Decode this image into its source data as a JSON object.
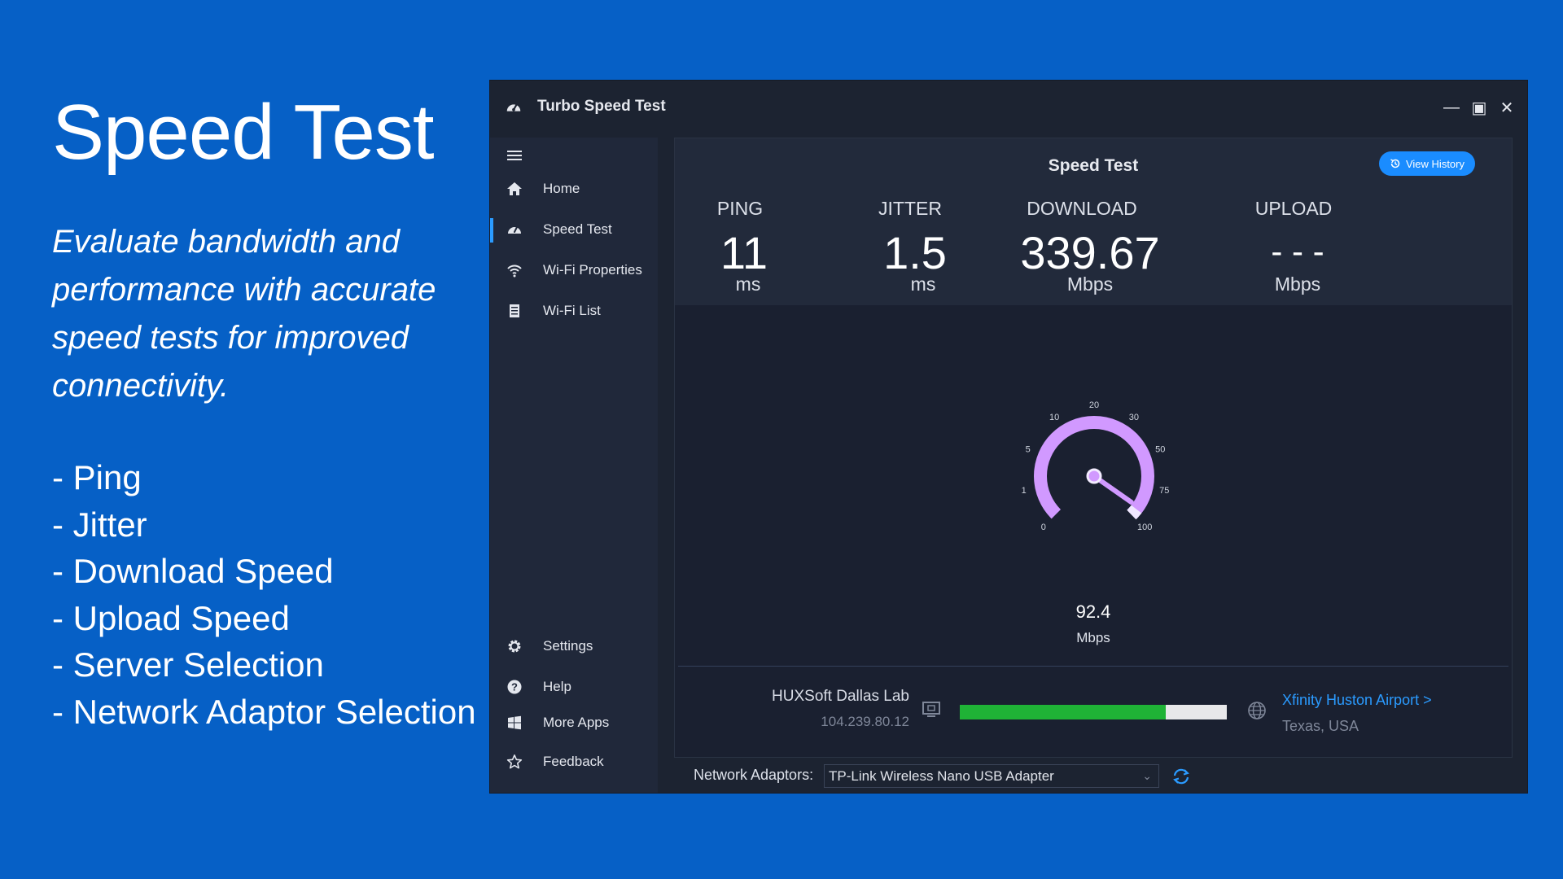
{
  "promo": {
    "title": "Speed Test",
    "description": "Evaluate bandwidth and performance with accurate speed tests for improved connectivity.",
    "features": [
      "- Ping",
      "- Jitter",
      "- Download Speed",
      "- Upload Speed",
      "- Server Selection",
      "- Network Adaptor Selection"
    ]
  },
  "window": {
    "title": "Turbo Speed Test",
    "controls": {
      "minimize": "—",
      "maximize": "▣",
      "close": "✕"
    }
  },
  "sidebar": {
    "top_items": [
      {
        "label": "Home",
        "icon": "home-icon"
      },
      {
        "label": "Speed Test",
        "icon": "speedometer-icon",
        "active": true
      },
      {
        "label": "Wi-Fi Properties",
        "icon": "wifi-icon"
      },
      {
        "label": "Wi-Fi List",
        "icon": "list-icon"
      }
    ],
    "bottom_items": [
      {
        "label": "Settings",
        "icon": "gear-icon"
      },
      {
        "label": "Help",
        "icon": "help-icon"
      },
      {
        "label": "More Apps",
        "icon": "windows-icon"
      },
      {
        "label": "Feedback",
        "icon": "star-icon"
      }
    ]
  },
  "speedtest": {
    "title": "Speed Test",
    "view_history": "View History",
    "ping": {
      "label": "PING",
      "value": "11",
      "unit": "ms"
    },
    "jitter": {
      "label": "JITTER",
      "value": "1.5",
      "unit": "ms"
    },
    "download": {
      "label": "DOWNLOAD",
      "value": "339.67",
      "unit": "Mbps"
    },
    "upload": {
      "label": "UPLOAD",
      "value": "- - -",
      "unit": "Mbps"
    },
    "gauge": {
      "ticks": [
        "0",
        "1",
        "5",
        "10",
        "20",
        "30",
        "50",
        "75",
        "100"
      ],
      "current_value": "92.4",
      "current_unit": "Mbps",
      "accent": "#d199ff"
    },
    "server": {
      "name": "HUXSoft Dallas Lab",
      "ip": "104.239.80.12"
    },
    "progress": 0.77,
    "isp": {
      "name": "Xfinity Huston Airport >",
      "location": "Texas, USA"
    }
  },
  "footer": {
    "adapter_label": "Network Adaptors:",
    "adapter_value": "TP-Link Wireless Nano USB Adapter"
  }
}
